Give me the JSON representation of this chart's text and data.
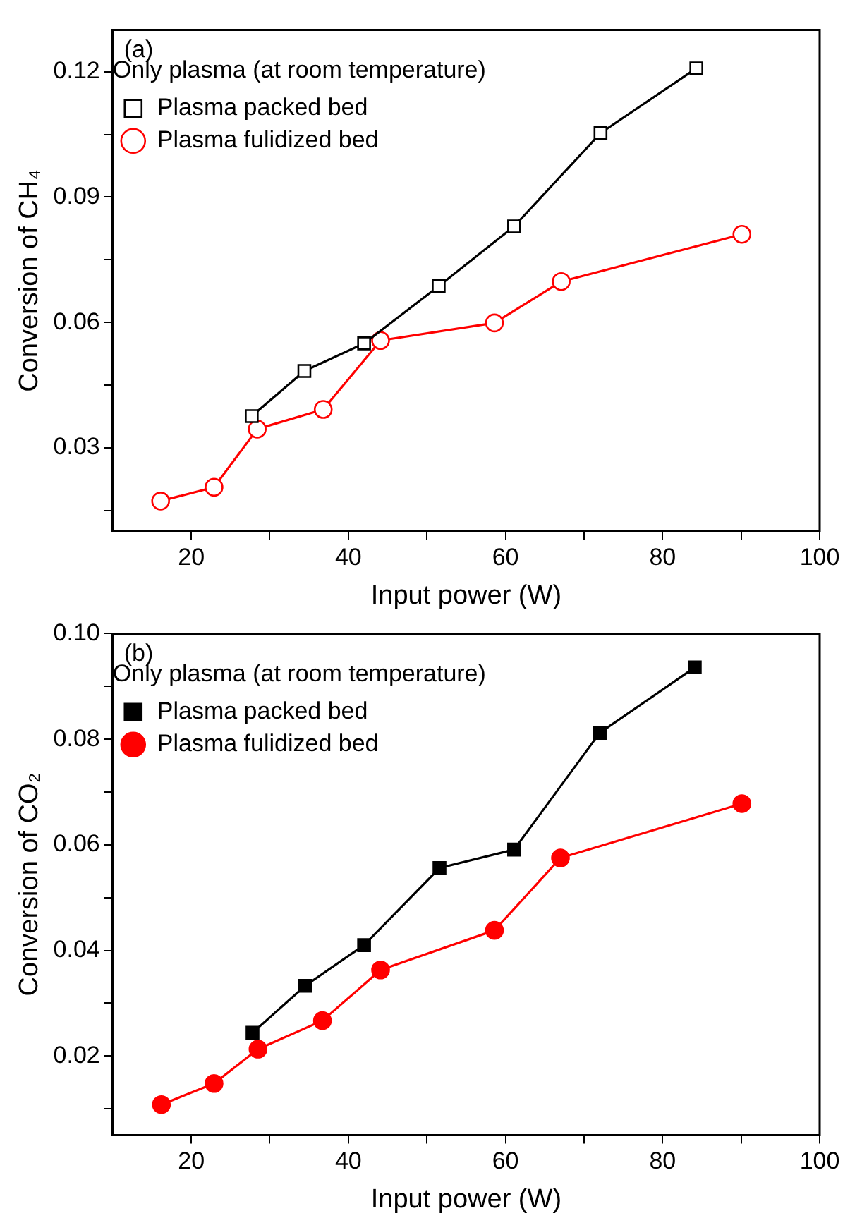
{
  "chart_data": [
    {
      "type": "line",
      "xlabel": "Input power (W)",
      "ylabel": "Conversion of CH₄",
      "legend_title": "Only plasma (at room temperature)",
      "annotations": [
        "(a)"
      ],
      "legend": "top left",
      "grid": false,
      "xlim": [
        10,
        100
      ],
      "ylim": [
        0.01,
        0.13
      ],
      "xticks": [
        20,
        {
          "value": 30,
          "label": null
        },
        40,
        {
          "value": 50,
          "label": null
        },
        60,
        {
          "value": 70,
          "label": null
        },
        80,
        {
          "value": 90,
          "label": null
        },
        100
      ],
      "yticks": [
        {
          "value": 0.015,
          "label": null
        },
        0.03,
        {
          "value": 0.045,
          "label": null
        },
        0.06,
        {
          "value": 0.075,
          "label": null
        },
        0.09,
        {
          "value": 0.105,
          "label": null
        },
        0.12
      ],
      "series": [
        {
          "name": "Plasma packed bed",
          "color": "#000000",
          "marker": "square",
          "x": [
            27.7,
            34.4,
            42.0,
            51.5,
            61.1,
            72.1,
            84.3
          ],
          "values": [
            0.0376,
            0.0484,
            0.055,
            0.0687,
            0.083,
            0.1053,
            0.1208
          ]
        },
        {
          "name": "Plasma fulidized bed",
          "color": "#ff0000",
          "marker": "circle",
          "x": [
            16.1,
            22.9,
            28.4,
            36.8,
            44.1,
            58.6,
            67.1,
            90.1
          ],
          "values": [
            0.0173,
            0.0206,
            0.0345,
            0.0392,
            0.0557,
            0.0599,
            0.0698,
            0.0811
          ]
        }
      ]
    },
    {
      "type": "line",
      "xlabel": "Input power (W)",
      "ylabel": "Conversion of CO₂",
      "legend_title": "Only plasma (at room temperature)",
      "annotations": [
        "(b)"
      ],
      "legend": "top left",
      "grid": false,
      "xlim": [
        10,
        100
      ],
      "ylim": [
        0.005,
        0.1
      ],
      "xticks": [
        20,
        {
          "value": 30,
          "label": null
        },
        40,
        {
          "value": 50,
          "label": null
        },
        60,
        {
          "value": 70,
          "label": null
        },
        80,
        {
          "value": 90,
          "label": null
        },
        100
      ],
      "yticks": [
        {
          "value": 0.01,
          "label": null
        },
        0.02,
        {
          "value": 0.03,
          "label": null
        },
        0.04,
        {
          "value": 0.05,
          "label": null
        },
        0.06,
        {
          "value": 0.07,
          "label": null
        },
        0.08,
        {
          "value": 0.09,
          "label": null
        },
        {
          "value": 0.1,
          "label": "0.10"
        }
      ],
      "series": [
        {
          "name": "Plasma packed bed",
          "color": "#000000",
          "marker": "square",
          "x": [
            27.8,
            34.5,
            42.0,
            51.6,
            61.1,
            72.0,
            84.1
          ],
          "values": [
            0.0244,
            0.0333,
            0.041,
            0.0556,
            0.0591,
            0.0812,
            0.0936
          ]
        },
        {
          "name": "Plasma fulidized bed",
          "color": "#ff0000",
          "marker": "circle",
          "x": [
            16.2,
            22.9,
            28.5,
            36.7,
            44.1,
            58.6,
            67.0,
            90.1
          ],
          "values": [
            0.0108,
            0.0148,
            0.0213,
            0.0267,
            0.0363,
            0.0438,
            0.0575,
            0.0678
          ]
        }
      ]
    }
  ]
}
